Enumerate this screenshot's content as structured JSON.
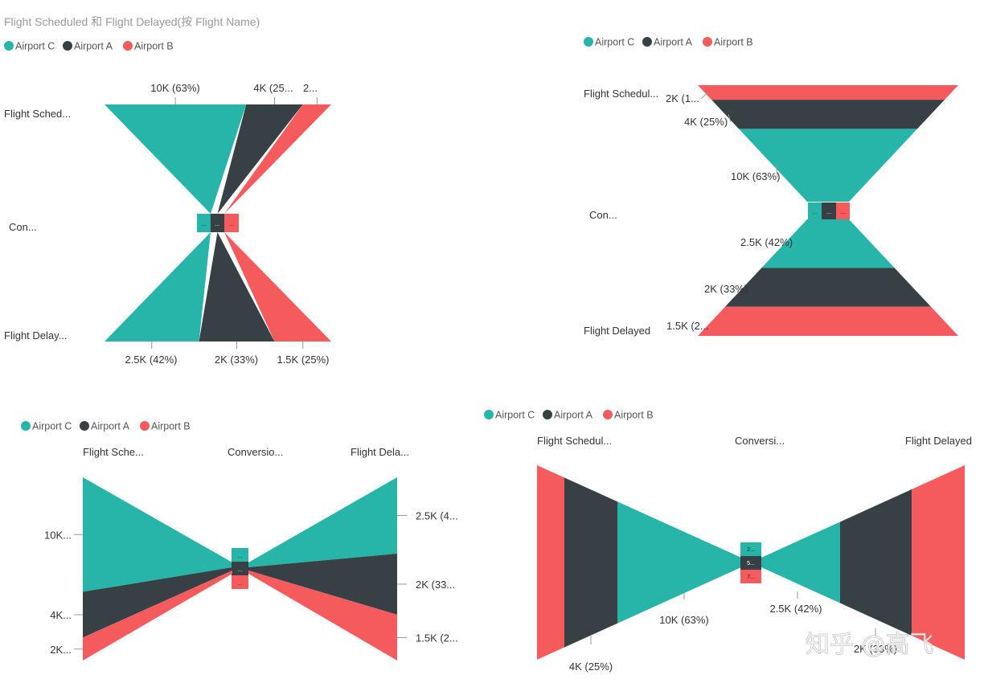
{
  "title": "Flight Scheduled 和 Flight Delayed(按 Flight Name)",
  "colors": {
    "Airport C": "#26B5A8",
    "Airport A": "#374145",
    "Airport B": "#F55B5C"
  },
  "legend": [
    "Airport C",
    "Airport A",
    "Airport B"
  ],
  "watermark": "知乎 @高飞",
  "chart_data": [
    {
      "type": "funnel",
      "orientation": "vertical",
      "stages": [
        "Flight Scheduled",
        "Conversion",
        "Flight Delayed"
      ],
      "stage_labels": [
        "Flight Sched...",
        "Con...",
        "Flight Delay..."
      ],
      "series": [
        {
          "name": "Airport C",
          "values": [
            10000,
            null,
            2500
          ],
          "labels": [
            "10K (63%)",
            "...",
            "2.5K (42%)"
          ]
        },
        {
          "name": "Airport A",
          "values": [
            4000,
            null,
            2000
          ],
          "labels": [
            "4K (25...",
            "...",
            "2K (33%)"
          ]
        },
        {
          "name": "Airport B",
          "values": [
            2000,
            null,
            1500
          ],
          "labels": [
            "2...",
            "...",
            "1.5K (25%)"
          ]
        }
      ]
    },
    {
      "type": "funnel",
      "orientation": "vertical-stacked",
      "stages": [
        "Flight Scheduled",
        "Conversion",
        "Flight Delayed"
      ],
      "stage_labels": [
        "Flight Schedul...",
        "Con...",
        "Flight Delayed"
      ],
      "series": [
        {
          "name": "Airport C",
          "values": [
            10000,
            null,
            2500
          ],
          "labels": [
            "10K (63%)",
            "...",
            "2.5K (42%)"
          ]
        },
        {
          "name": "Airport A",
          "values": [
            4000,
            null,
            2000
          ],
          "labels": [
            "4K (25%)",
            "...",
            "2K (33%)"
          ]
        },
        {
          "name": "Airport B",
          "values": [
            2000,
            null,
            1500
          ],
          "labels": [
            "2K (1...",
            "...",
            "1.5K (2..."
          ]
        }
      ]
    },
    {
      "type": "funnel",
      "orientation": "horizontal",
      "stages": [
        "Flight Scheduled",
        "Conversion",
        "Flight Delayed"
      ],
      "stage_labels": [
        "Flight Sche...",
        "Conversio...",
        "Flight Dela..."
      ],
      "series": [
        {
          "name": "Airport C",
          "values": [
            10000,
            null,
            2500
          ],
          "labels": [
            "10K...",
            "...",
            "2.5K (4..."
          ]
        },
        {
          "name": "Airport A",
          "values": [
            4000,
            null,
            2000
          ],
          "labels": [
            "4K...",
            "...",
            "2K (33..."
          ]
        },
        {
          "name": "Airport B",
          "values": [
            2000,
            null,
            1500
          ],
          "labels": [
            "2K...",
            "...",
            "1.5K (2..."
          ]
        }
      ]
    },
    {
      "type": "funnel",
      "orientation": "horizontal-nested",
      "stages": [
        "Flight Scheduled",
        "Conversion",
        "Flight Delayed"
      ],
      "stage_labels": [
        "Flight Schedul...",
        "Conversi...",
        "Flight Delayed"
      ],
      "series": [
        {
          "name": "Airport C",
          "values": [
            10000,
            null,
            2500
          ],
          "labels": [
            "10K (63%)",
            "2...",
            "2.5K (42%)"
          ]
        },
        {
          "name": "Airport A",
          "values": [
            4000,
            null,
            2000
          ],
          "labels": [
            "4K (25%)",
            "5...",
            "2K (33%)"
          ]
        },
        {
          "name": "Airport B",
          "values": [
            2000,
            null,
            1500
          ],
          "labels": [
            "",
            "7...",
            ""
          ]
        }
      ]
    }
  ]
}
